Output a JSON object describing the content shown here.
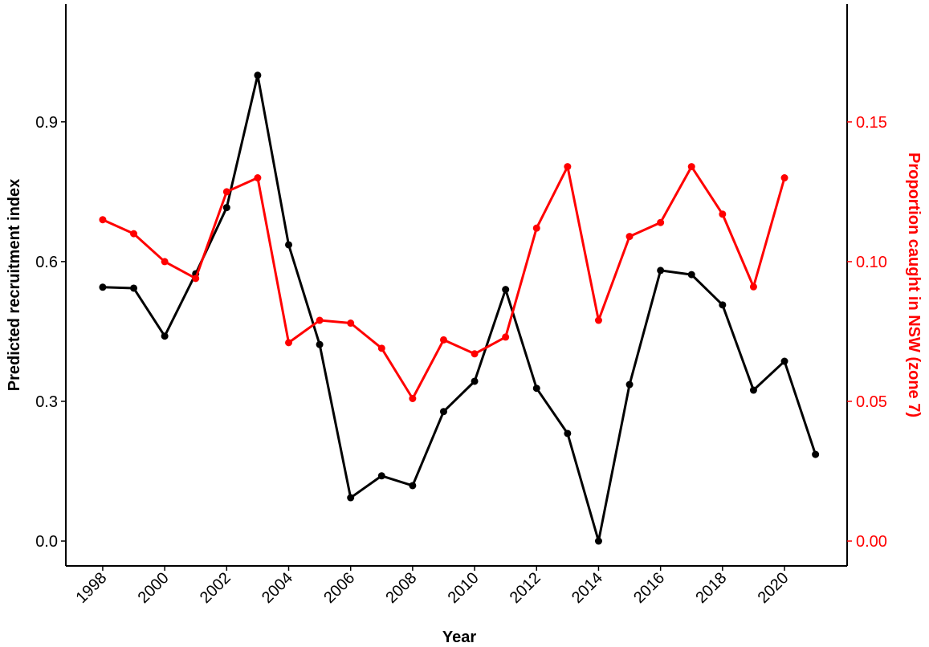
{
  "chart_data": {
    "type": "line",
    "x_label": "Year",
    "y_label": "Predicted recruitment index",
    "y2_label": "Proportion caught in NSW (zone 7)",
    "y2_color": "#ff0000",
    "x": [
      1998,
      1999,
      2000,
      2001,
      2002,
      2003,
      2004,
      2005,
      2006,
      2007,
      2008,
      2009,
      2010,
      2011,
      2012,
      2013,
      2014,
      2015,
      2016,
      2017,
      2018,
      2019,
      2020,
      2021
    ],
    "series": [
      {
        "color": "#000000",
        "values": [
          0.545,
          0.543,
          0.44,
          0.574,
          0.716,
          1.0,
          0.636,
          0.422,
          0.093,
          0.14,
          0.119,
          0.278,
          0.343,
          0.54,
          0.328,
          0.231,
          0.0,
          0.336,
          0.581,
          0.572,
          0.507,
          0.324,
          0.386,
          0.186
        ]
      },
      {
        "color": "#ff0000",
        "axis": "y2",
        "values": [
          0.115,
          0.11,
          0.1,
          0.094,
          0.125,
          0.13,
          0.071,
          0.079,
          0.078,
          0.069,
          0.051,
          0.072,
          0.067,
          0.073,
          0.112,
          0.134,
          0.079,
          0.109,
          0.114,
          0.134,
          0.117,
          0.091,
          0.13,
          null
        ]
      }
    ],
    "xlim": [
      1996.81,
      2022.02
    ],
    "xticks": [
      1998,
      2000,
      2002,
      2004,
      2006,
      2008,
      2010,
      2012,
      2014,
      2016,
      2018,
      2020
    ],
    "ylim": [
      -0.0534,
      1.153
    ],
    "yticks": [
      {
        "value": 0,
        "label": "0.0"
      },
      {
        "value": 0.3,
        "label": "0.3"
      },
      {
        "value": 0.6,
        "label": "0.6"
      },
      {
        "value": 0.9,
        "label": "0.9"
      }
    ],
    "y2lim": [
      -0.0089,
      0.1922
    ],
    "y2ticks": [
      {
        "value": 0,
        "label": "0.00"
      },
      {
        "value": 0.05,
        "label": "0.05"
      },
      {
        "value": 0.1,
        "label": "0.10"
      },
      {
        "value": 0.15,
        "label": "0.15"
      }
    ]
  }
}
